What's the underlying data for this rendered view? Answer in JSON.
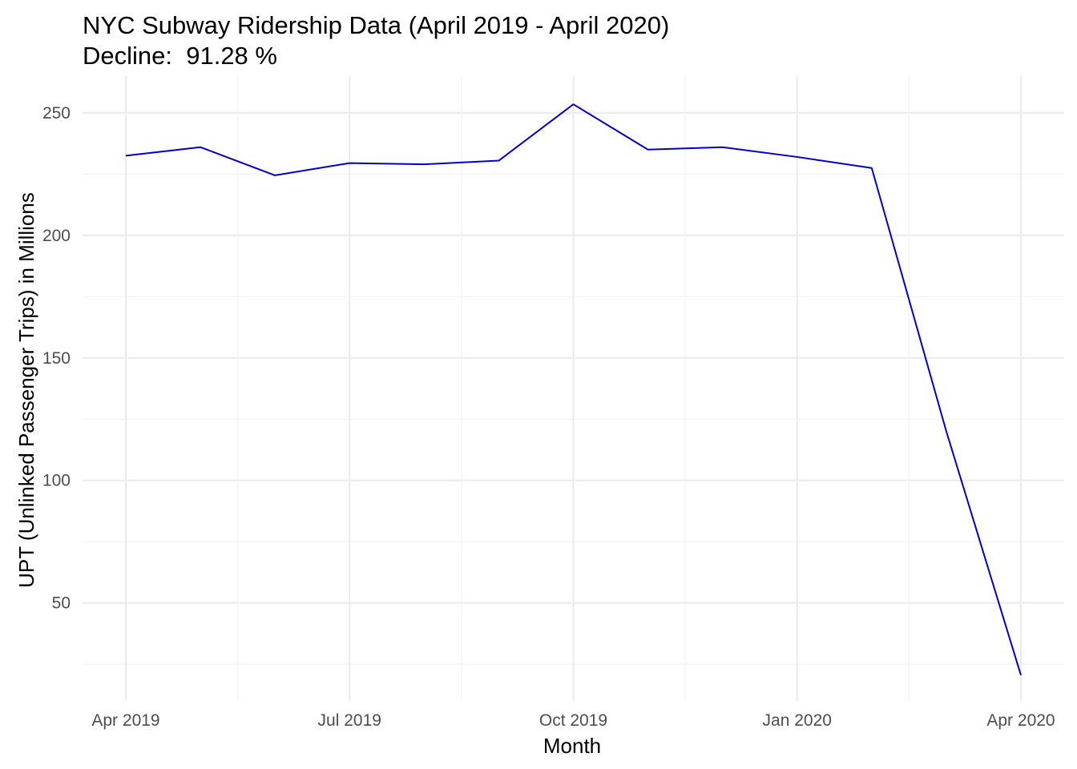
{
  "chart_data": {
    "type": "line",
    "title": "NYC Subway Ridership Data (April 2019 - April 2020)",
    "subtitle": "Decline:  91.28 %",
    "xlabel": "Month",
    "ylabel": "UPT (Unlinked Passenger Trips) in Millions",
    "x_ticks": [
      "Apr 2019",
      "Jul 2019",
      "Oct 2019",
      "Jan 2020",
      "Apr 2020"
    ],
    "y_ticks": [
      50,
      100,
      150,
      200,
      250
    ],
    "ylim": [
      10,
      265
    ],
    "grid": true,
    "legend": "none",
    "series": [
      {
        "color": "#0000cd",
        "points": [
          {
            "x": "2019-04-01",
            "y": 232.5
          },
          {
            "x": "2019-05-01",
            "y": 236.0
          },
          {
            "x": "2019-06-01",
            "y": 224.5
          },
          {
            "x": "2019-07-01",
            "y": 229.5
          },
          {
            "x": "2019-08-01",
            "y": 229.0
          },
          {
            "x": "2019-09-01",
            "y": 230.5
          },
          {
            "x": "2019-10-01",
            "y": 253.5
          },
          {
            "x": "2019-11-01",
            "y": 235.0
          },
          {
            "x": "2019-12-01",
            "y": 236.0
          },
          {
            "x": "2020-01-01",
            "y": 232.0
          },
          {
            "x": "2020-02-01",
            "y": 227.5
          },
          {
            "x": "2020-03-01",
            "y": 120.0
          },
          {
            "x": "2020-04-01",
            "y": 20.5
          }
        ]
      }
    ]
  }
}
